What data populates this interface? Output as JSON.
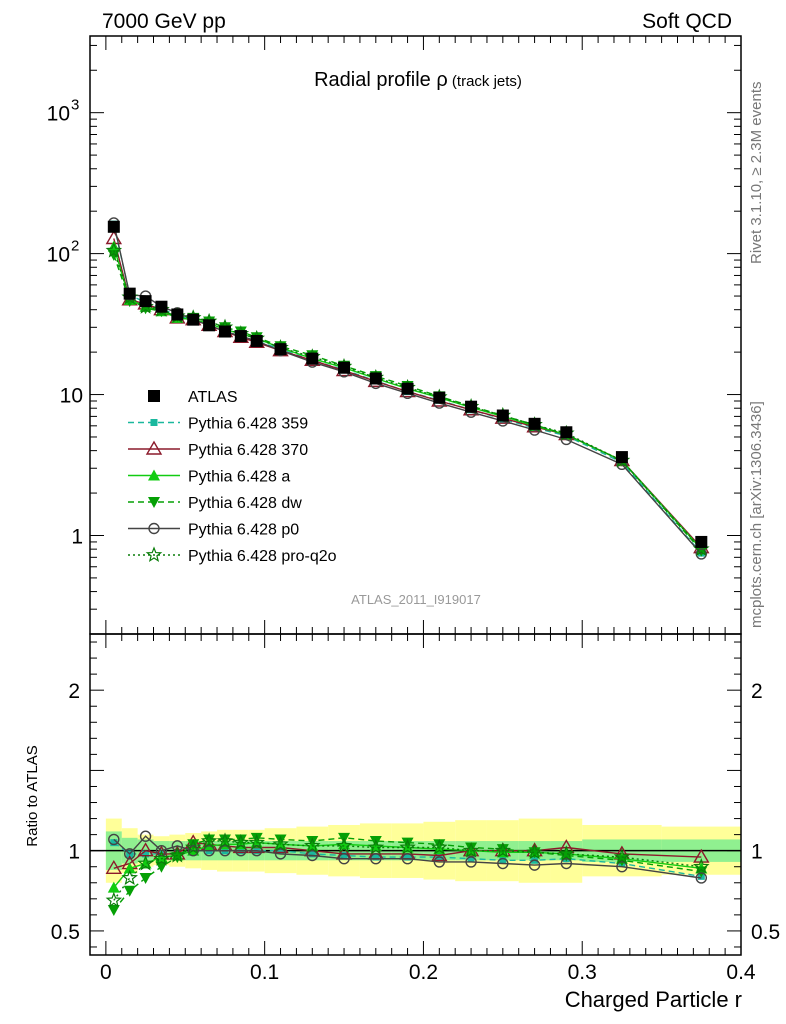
{
  "header": {
    "left": "7000 GeV pp",
    "right": "Soft QCD"
  },
  "side_labels": {
    "top": "Rivet 3.1.10, ≥ 2.3M events",
    "bottom": "mcplots.cern.ch [arXiv:1306.3436]"
  },
  "analysis_id": "ATLAS_2011_I919017",
  "chart_data": [
    {
      "type": "line",
      "panel": "main",
      "title_main": "Radial profile ",
      "title_symbol": "ρ",
      "title_sub": " (track jets)",
      "xlim": [
        -0.01,
        0.4
      ],
      "ylim": [
        0.2,
        3500
      ],
      "log_y": true,
      "y_ticks": [
        {
          "value": 1,
          "label": "1"
        },
        {
          "value": 10,
          "label": "10"
        },
        {
          "value": 100,
          "label": "10",
          "exp": "2"
        },
        {
          "value": 1000,
          "label": "10",
          "exp": "3"
        }
      ],
      "legend_position": "left-middle",
      "x": [
        0.005,
        0.015,
        0.025,
        0.035,
        0.045,
        0.055,
        0.065,
        0.075,
        0.085,
        0.095,
        0.11,
        0.13,
        0.15,
        0.17,
        0.19,
        0.21,
        0.23,
        0.25,
        0.27,
        0.29,
        0.325,
        0.375
      ],
      "series": [
        {
          "name": "ATLAS",
          "color": "#000000",
          "marker": "square",
          "line": "none",
          "values": [
            155,
            52,
            46,
            42,
            37,
            34,
            31,
            28,
            26,
            24,
            21,
            18,
            15.5,
            13,
            11,
            9.5,
            8.2,
            7.1,
            6.2,
            5.4,
            3.6,
            0.9
          ]
        },
        {
          "name": "Pythia 6.428 359",
          "color": "#1ab89e",
          "marker": "square-small",
          "line": "dashed",
          "values": [
            162,
            51,
            45,
            41,
            36,
            34,
            31,
            28,
            26,
            24,
            21,
            17.5,
            15,
            12.5,
            10.5,
            9.1,
            7.8,
            6.7,
            5.8,
            5.1,
            3.3,
            0.75
          ]
        },
        {
          "name": "Pythia 6.428 370",
          "color": "#8b1a2b",
          "marker": "triangle-open",
          "line": "solid",
          "values": [
            128,
            47,
            44,
            40,
            35,
            34,
            31,
            28,
            25.5,
            23.5,
            20.5,
            17.5,
            14.8,
            12.4,
            10.5,
            9.0,
            7.8,
            6.8,
            5.9,
            5.2,
            3.4,
            0.82
          ]
        },
        {
          "name": "Pythia 6.428 a",
          "color": "#11cc11",
          "marker": "triangle-filled",
          "line": "solid",
          "values": [
            112,
            47,
            42,
            39,
            35,
            34,
            32,
            29,
            27,
            25,
            21.5,
            18,
            15.5,
            13,
            11,
            9.5,
            8.1,
            7.0,
            6.0,
            5.2,
            3.4,
            0.8
          ]
        },
        {
          "name": "Pythia 6.428 dw",
          "color": "#05a005",
          "marker": "triangle-down-filled",
          "line": "dashed",
          "values": [
            98,
            46,
            41,
            39,
            36,
            35,
            33,
            30,
            28,
            25.5,
            22,
            19,
            16,
            13.5,
            11.5,
            9.7,
            8.3,
            7.1,
            6.1,
            5.2,
            3.4,
            0.78
          ]
        },
        {
          "name": "Pythia 6.428 p0",
          "color": "#444444",
          "marker": "circle-open",
          "line": "solid",
          "values": [
            165,
            51,
            50,
            42,
            38,
            34,
            31,
            28,
            26,
            24,
            20.5,
            17,
            14.5,
            12,
            10.2,
            8.7,
            7.5,
            6.5,
            5.6,
            4.8,
            3.2,
            0.74
          ]
        },
        {
          "name": "Pythia 6.428 pro-q2o",
          "color": "#0a7d0a",
          "marker": "star-open",
          "line": "dotted",
          "values": [
            105,
            49,
            42,
            40,
            36,
            35,
            33,
            30,
            27,
            25,
            21.5,
            18.5,
            15.8,
            13.2,
            11.2,
            9.6,
            8.2,
            7.1,
            6.1,
            5.3,
            3.4,
            0.8
          ]
        }
      ]
    },
    {
      "type": "line",
      "panel": "ratio",
      "ylabel": "Ratio to ATLAS",
      "xlabel": "Charged Particle r",
      "xlim": [
        -0.01,
        0.4
      ],
      "ylim": [
        0.35,
        2.35
      ],
      "x_ticks": [
        {
          "value": 0,
          "label": "0"
        },
        {
          "value": 0.1,
          "label": "0.1"
        },
        {
          "value": 0.2,
          "label": "0.2"
        },
        {
          "value": 0.3,
          "label": "0.3"
        },
        {
          "value": 0.4,
          "label": "0.4"
        }
      ],
      "y_ticks": [
        {
          "value": 0.5,
          "label": "0.5"
        },
        {
          "value": 1,
          "label": "1"
        },
        {
          "value": 2,
          "label": "2"
        }
      ],
      "x": [
        0.005,
        0.015,
        0.025,
        0.035,
        0.045,
        0.055,
        0.065,
        0.075,
        0.085,
        0.095,
        0.11,
        0.13,
        0.15,
        0.17,
        0.19,
        0.21,
        0.23,
        0.25,
        0.27,
        0.29,
        0.325,
        0.375
      ],
      "bands": {
        "bins": [
          0,
          0.01,
          0.02,
          0.03,
          0.04,
          0.05,
          0.06,
          0.07,
          0.08,
          0.09,
          0.1,
          0.12,
          0.14,
          0.16,
          0.18,
          0.2,
          0.22,
          0.24,
          0.26,
          0.28,
          0.3,
          0.35,
          0.4
        ],
        "stat": [
          0.12,
          0.08,
          0.07,
          0.06,
          0.06,
          0.06,
          0.06,
          0.06,
          0.06,
          0.06,
          0.06,
          0.06,
          0.06,
          0.06,
          0.06,
          0.06,
          0.06,
          0.06,
          0.06,
          0.06,
          0.07,
          0.07
        ],
        "total": [
          0.2,
          0.14,
          0.1,
          0.09,
          0.1,
          0.11,
          0.12,
          0.13,
          0.13,
          0.13,
          0.14,
          0.15,
          0.16,
          0.17,
          0.17,
          0.18,
          0.19,
          0.19,
          0.2,
          0.2,
          0.16,
          0.15
        ],
        "stat_color": "#90f090",
        "total_color": "#ffff99"
      },
      "series": [
        {
          "name": "Pythia 6.428 359",
          "color": "#1ab89e",
          "marker": "square-small",
          "line": "dashed",
          "values": [
            1.05,
            0.98,
            0.98,
            0.98,
            0.98,
            1.0,
            1.0,
            1.0,
            1.0,
            1.0,
            1.0,
            0.98,
            0.97,
            0.96,
            0.96,
            0.96,
            0.95,
            0.94,
            0.94,
            0.95,
            0.92,
            0.84
          ]
        },
        {
          "name": "Pythia 6.428 370",
          "color": "#8b1a2b",
          "marker": "triangle-open",
          "line": "solid",
          "values": [
            0.89,
            0.92,
            1.0,
            0.98,
            0.98,
            1.05,
            1.04,
            1.03,
            1.02,
            1.02,
            1.02,
            1.0,
            0.98,
            0.98,
            0.98,
            0.97,
            1.0,
            1.0,
            1.0,
            1.02,
            0.98,
            0.96
          ]
        },
        {
          "name": "Pythia 6.428 a",
          "color": "#11cc11",
          "marker": "triangle-filled",
          "line": "solid",
          "values": [
            0.77,
            0.89,
            0.92,
            0.96,
            0.97,
            1.0,
            1.03,
            1.04,
            1.04,
            1.05,
            1.04,
            1.03,
            1.04,
            1.03,
            1.02,
            1.01,
            1.0,
            0.99,
            0.99,
            0.98,
            0.95,
            0.89
          ]
        },
        {
          "name": "Pythia 6.428 dw",
          "color": "#05a005",
          "marker": "triangle-down-filled",
          "line": "dashed",
          "values": [
            0.63,
            0.75,
            0.83,
            0.9,
            0.96,
            1.04,
            1.07,
            1.07,
            1.07,
            1.08,
            1.07,
            1.06,
            1.08,
            1.06,
            1.05,
            1.04,
            1.02,
            1.01,
            0.99,
            0.97,
            0.94,
            0.87
          ]
        },
        {
          "name": "Pythia 6.428 p0",
          "color": "#444444",
          "marker": "circle-open",
          "line": "solid",
          "values": [
            1.07,
            0.98,
            1.09,
            1.0,
            1.03,
            1.0,
            1.0,
            1.0,
            1.0,
            1.0,
            0.98,
            0.97,
            0.95,
            0.95,
            0.95,
            0.93,
            0.93,
            0.92,
            0.91,
            0.92,
            0.9,
            0.83
          ]
        },
        {
          "name": "Pythia 6.428 pro-q2o",
          "color": "#0a7d0a",
          "marker": "star-open",
          "line": "dotted",
          "values": [
            0.69,
            0.83,
            0.92,
            0.95,
            0.97,
            1.02,
            1.06,
            1.06,
            1.05,
            1.05,
            1.04,
            1.03,
            1.03,
            1.02,
            1.02,
            1.02,
            1.0,
            1.0,
            0.99,
            0.98,
            0.96,
            0.9
          ]
        }
      ]
    }
  ]
}
